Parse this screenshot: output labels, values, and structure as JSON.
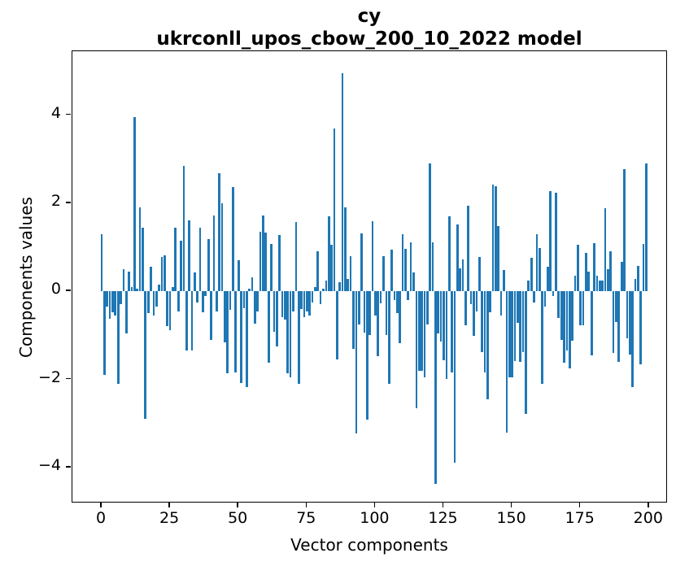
{
  "title": {
    "line1": "cy",
    "line2": "ukrconll_upos_cbow_200_10_2022 model"
  },
  "chart_data": {
    "type": "bar",
    "title": "cy",
    "subtitle": "ukrconll_upos_cbow_200_10_2022 model",
    "xlabel": "Vector components",
    "ylabel": "Components values",
    "bar_color": "#1f77b4",
    "grid": false,
    "legend_position": "none",
    "xlim": [
      -10.7,
      206.0
    ],
    "ylim": [
      -4.76,
      5.45
    ],
    "xticks": [
      0,
      25,
      50,
      75,
      100,
      125,
      150,
      175,
      200
    ],
    "yticks": [
      -4,
      -2,
      0,
      2,
      4
    ],
    "x_start": 0,
    "bar_width_units": 0.8,
    "values": [
      1.3,
      -1.9,
      -0.35,
      -0.62,
      -0.48,
      -0.55,
      -2.1,
      -0.3,
      0.5,
      -0.95,
      0.45,
      0.1,
      3.95,
      0.05,
      1.9,
      1.45,
      -2.9,
      -0.5,
      0.55,
      -0.55,
      -0.35,
      0.15,
      0.77,
      0.81,
      -0.79,
      -0.89,
      0.1,
      1.45,
      -0.45,
      1.14,
      2.85,
      -1.34,
      1.61,
      -1.34,
      0.42,
      -0.26,
      1.45,
      -0.48,
      -0.1,
      1.18,
      -1.1,
      1.72,
      -0.45,
      2.68,
      1.99,
      -1.16,
      -1.87,
      -0.43,
      2.37,
      -1.85,
      0.7,
      -2.08,
      -0.38,
      -2.18,
      0.05,
      0.32,
      -0.74,
      -0.45,
      1.35,
      1.72,
      1.33,
      -1.62,
      1.08,
      -0.92,
      -1.25,
      1.27,
      -0.58,
      -0.64,
      -1.87,
      -1.96,
      -0.46,
      1.58,
      -2.1,
      -0.4,
      -0.58,
      -0.46,
      -0.55,
      -0.25,
      0.1,
      0.91,
      -0.3,
      0.05,
      0.25,
      1.7,
      1.05,
      3.7,
      -1.55,
      0.2,
      4.95,
      1.9,
      0.28,
      0.8,
      -1.3,
      -3.22,
      -0.75,
      1.32,
      -0.94,
      -2.91,
      -1.0,
      1.6,
      -0.55,
      -1.47,
      -0.28,
      0.8,
      -1.0,
      -2.1,
      0.95,
      -0.2,
      -0.5,
      -1.17,
      1.3,
      0.97,
      -0.2,
      1.12,
      0.43,
      -2.66,
      -1.8,
      -1.8,
      -1.95,
      -0.75,
      2.91,
      1.11,
      -4.37,
      -0.95,
      -1.15,
      -1.56,
      -1.99,
      1.71,
      -1.85,
      -3.9,
      1.52,
      0.52,
      0.72,
      -0.78,
      1.94,
      -0.29,
      -1.02,
      -0.45,
      0.78,
      -1.38,
      -1.85,
      -2.45,
      -0.48,
      2.42,
      2.39,
      1.48,
      -0.55,
      0.48,
      -3.21,
      -1.95,
      -1.95,
      -1.58,
      -0.72,
      -1.6,
      -1.38,
      -2.78,
      0.25,
      0.76,
      -0.25,
      1.29,
      0.99,
      -2.11,
      -0.35,
      0.55,
      2.27,
      -0.1,
      2.24,
      -0.6,
      -1.1,
      -1.62,
      -1.35,
      -1.75,
      -1.13,
      0.35,
      1.05,
      -0.78,
      -0.78,
      0.88,
      0.45,
      -1.45,
      1.1,
      0.35,
      0.25,
      0.25,
      1.88,
      0.5,
      0.9,
      -1.4,
      -0.7,
      -1.6,
      0.67,
      2.78,
      -1.07,
      -1.44,
      -2.17,
      0.28,
      0.57,
      -1.65,
      1.08,
      2.9
    ]
  }
}
